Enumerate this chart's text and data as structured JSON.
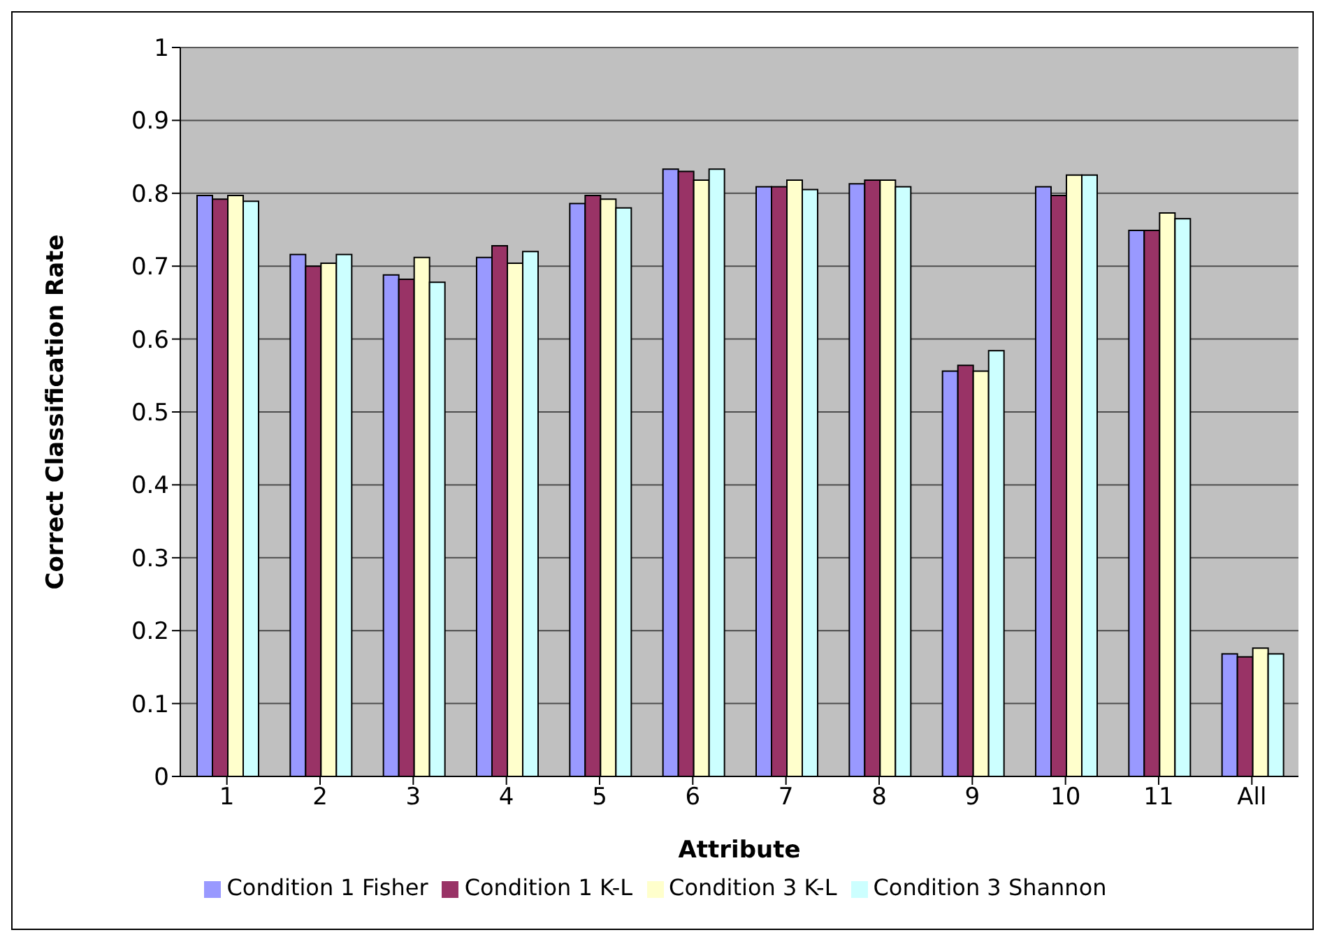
{
  "chart_data": {
    "type": "bar",
    "xlabel": "Attribute",
    "ylabel": "Correct Classification Rate",
    "categories": [
      "1",
      "2",
      "3",
      "4",
      "5",
      "6",
      "7",
      "8",
      "9",
      "10",
      "11",
      "All"
    ],
    "series": [
      {
        "name": "Condition 1 Fisher",
        "color": "#9999ff",
        "values": [
          0.797,
          0.716,
          0.688,
          0.712,
          0.786,
          0.833,
          0.809,
          0.813,
          0.556,
          0.809,
          0.749,
          0.168
        ]
      },
      {
        "name": "Condition 1 K-L",
        "color": "#993366",
        "values": [
          0.792,
          0.7,
          0.682,
          0.728,
          0.797,
          0.83,
          0.809,
          0.818,
          0.564,
          0.797,
          0.749,
          0.164
        ]
      },
      {
        "name": "Condition 3 K-L",
        "color": "#ffffcc",
        "values": [
          0.797,
          0.704,
          0.712,
          0.704,
          0.792,
          0.818,
          0.818,
          0.818,
          0.556,
          0.825,
          0.773,
          0.176
        ]
      },
      {
        "name": "Condition 3 Shannon",
        "color": "#ccffff",
        "values": [
          0.789,
          0.716,
          0.678,
          0.72,
          0.78,
          0.833,
          0.805,
          0.809,
          0.584,
          0.825,
          0.765,
          0.168
        ]
      }
    ],
    "ylim": [
      0,
      1
    ],
    "yticks": [
      0,
      0.1,
      0.2,
      0.3,
      0.4,
      0.5,
      0.6,
      0.7,
      0.8,
      0.9,
      1
    ],
    "grid": "y",
    "legend": "bottom"
  }
}
